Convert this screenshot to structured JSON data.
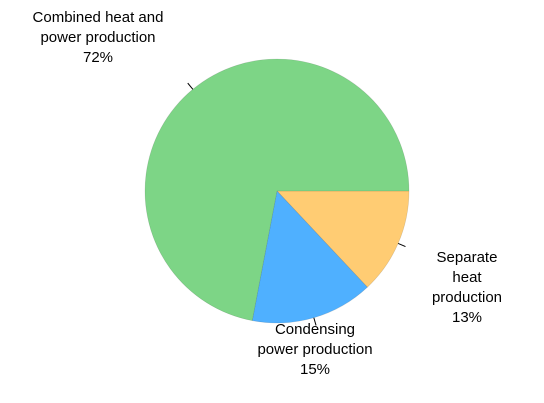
{
  "chart_data": {
    "type": "pie",
    "categories": [
      "Separate heat\nproduction",
      "Condensing\npower production",
      "Combined heat and\npower production"
    ],
    "values": [
      13,
      15,
      72
    ],
    "value_labels": [
      "13%",
      "15%",
      "72%"
    ],
    "colors": [
      "#ffcc73",
      "#4fb0ff",
      "#7dd586"
    ]
  }
}
